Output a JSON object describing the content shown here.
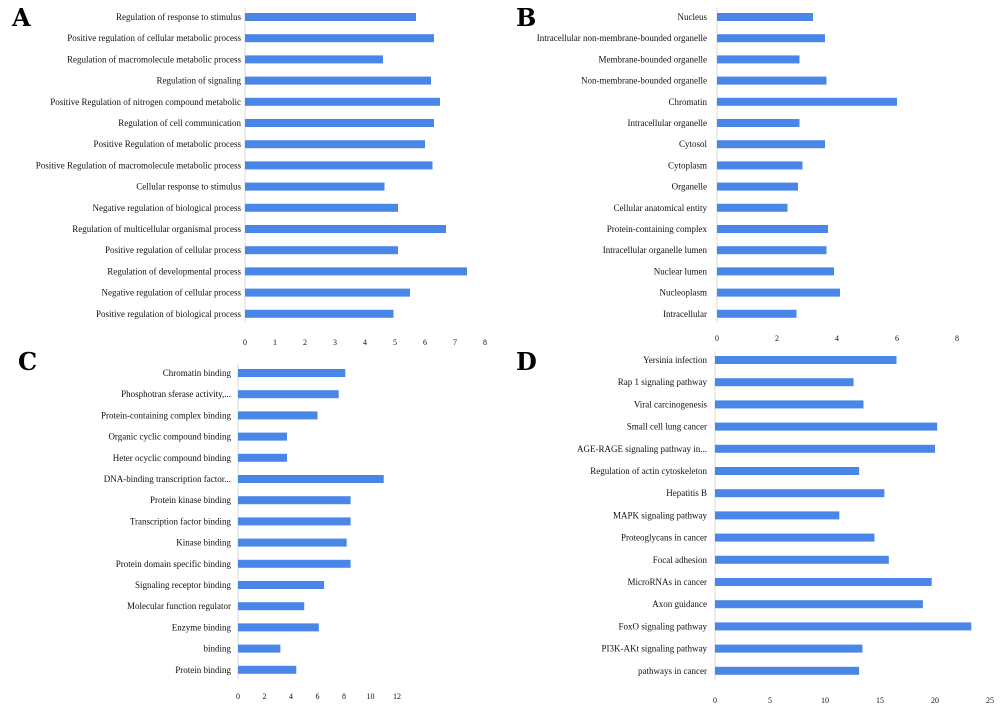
{
  "chart_data": [
    {
      "type": "bar",
      "orientation": "horizontal",
      "panel_label": "A",
      "categories": [
        "Regulation of response to stimulus",
        "Positive regulation of cellular metabolic process",
        "Regulation of macromolecule metabolic process",
        "Regulation of signaling",
        "Positive Regulation of nitrogen compound metabolic",
        "Regulation of cell communication",
        "Positive Regulation of metabolic process",
        "Positive Regulation of macromolecule metabolic process",
        "Cellular response to stimulus",
        "Negative regulation of biological process",
        "Regulation of multicellular organismal process",
        "Positive regulation of cellular process",
        "Regulation of developmental process",
        "Negative regulation of cellular process",
        "Positive regulation of biological process"
      ],
      "values": [
        5.7,
        6.3,
        4.6,
        6.2,
        6.5,
        6.3,
        6.0,
        6.25,
        4.65,
        5.1,
        6.7,
        5.1,
        7.4,
        5.5,
        4.95
      ],
      "ticks": [
        "0",
        "1",
        "2",
        "3",
        "4",
        "5",
        "6",
        "7",
        "8"
      ],
      "xlim": [
        0,
        8
      ],
      "grid": false
    },
    {
      "type": "bar",
      "orientation": "horizontal",
      "panel_label": "B",
      "categories": [
        "Nucleus",
        "Intracellular non-membrane-bounded organelle",
        "Membrane-bounded organelle",
        "Non-membrane-bounded organelle",
        "Chromatin",
        "Intracellular organelle",
        "Cytosol",
        "Cytoplasm",
        "Organelle",
        "Cellular anatomical entity",
        "Protein-containing complex",
        "Intracellular organelle lumen",
        "Nuclear lumen",
        "Nucleoplasm",
        "Intracellular"
      ],
      "values": [
        3.2,
        3.6,
        2.75,
        3.65,
        6.0,
        2.75,
        3.6,
        2.85,
        2.7,
        2.35,
        3.7,
        3.65,
        3.9,
        4.1,
        2.65
      ],
      "ticks": [
        "0",
        "2",
        "4",
        "6",
        "8"
      ],
      "xlim": [
        0,
        8
      ],
      "grid": false
    },
    {
      "type": "bar",
      "orientation": "horizontal",
      "panel_label": "C",
      "categories": [
        "Chromatin binding",
        "Phosphotran sferase activity,...",
        "Protein-containing complex binding",
        "Organic cyclic compound binding",
        "Heter ocyclic compound binding",
        "DNA-binding transcription factor...",
        "Protein kinase binding",
        "Transcription factor binding",
        "Kinase binding",
        "Protein domain specific binding",
        "Signaling receptor binding",
        "Molecular function regulator",
        "Enzyme binding",
        "binding",
        "Protein binding"
      ],
      "values": [
        8.1,
        7.6,
        6.0,
        3.7,
        3.7,
        11.0,
        8.5,
        8.5,
        8.2,
        8.5,
        6.5,
        5.0,
        6.1,
        3.2,
        4.4
      ],
      "ticks": [
        "0",
        "2",
        "4",
        "6",
        "8",
        "10",
        "12"
      ],
      "xlim": [
        0,
        12
      ],
      "grid": false
    },
    {
      "type": "bar",
      "orientation": "horizontal",
      "panel_label": "D",
      "categories": [
        "Yersinia infection",
        "Rap 1 signaling pathway",
        "Viral carcinogenesis",
        "Small cell lung cancer",
        "AGE-RAGE signaling pathway in...",
        "Regulation of actin cytoskeleton",
        "Hepatitis B",
        "MAPK signaling pathway",
        "Proteoglycans in cancer",
        "Focal adhesion",
        "MicroRNAs in cancer",
        "Axon guidance",
        "FoxO signaling pathway",
        "PI3K-AKt signaling pathway",
        "pathways in cancer"
      ],
      "values": [
        16.5,
        12.6,
        13.5,
        20.2,
        20.0,
        13.1,
        15.4,
        11.3,
        14.5,
        15.8,
        19.7,
        18.9,
        23.3,
        13.4,
        13.1
      ],
      "ticks": [
        "0",
        "5",
        "10",
        "15",
        "20",
        "25"
      ],
      "xlim": [
        0,
        25
      ],
      "grid": false
    }
  ]
}
